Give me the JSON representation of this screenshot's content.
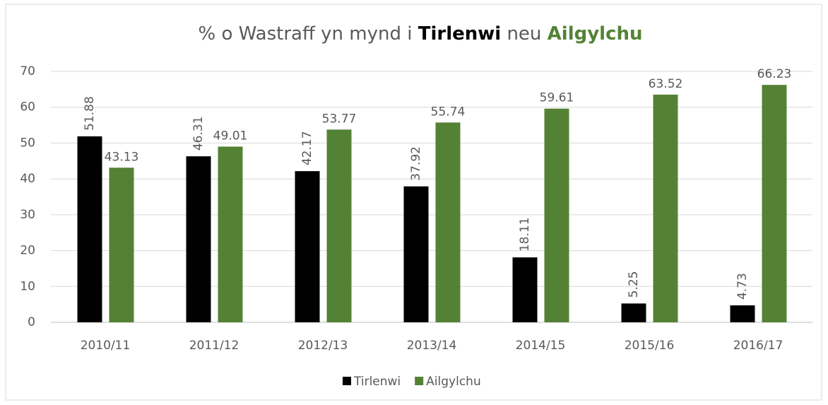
{
  "chart_data": {
    "type": "bar",
    "title": [
      "% o Wastraff yn mynd i",
      "Tirlenwi",
      "neu",
      "Ailgylchu"
    ],
    "categories": [
      "2010/11",
      "2011/12",
      "2012/13",
      "2013/14",
      "2014/15",
      "2015/16",
      "2016/17"
    ],
    "series": [
      {
        "name": "Tirlenwi",
        "color": "#000000",
        "values": [
          51.88,
          46.31,
          42.17,
          37.92,
          18.11,
          5.25,
          4.73
        ]
      },
      {
        "name": "Ailgylchu",
        "color": "#548235",
        "values": [
          43.13,
          49.01,
          53.77,
          55.74,
          59.61,
          63.52,
          66.23
        ]
      }
    ],
    "ylim": [
      0,
      70
    ],
    "yticks": [
      0,
      10,
      20,
      30,
      40,
      50,
      60,
      70
    ],
    "grid": true,
    "legend": "bottom"
  }
}
